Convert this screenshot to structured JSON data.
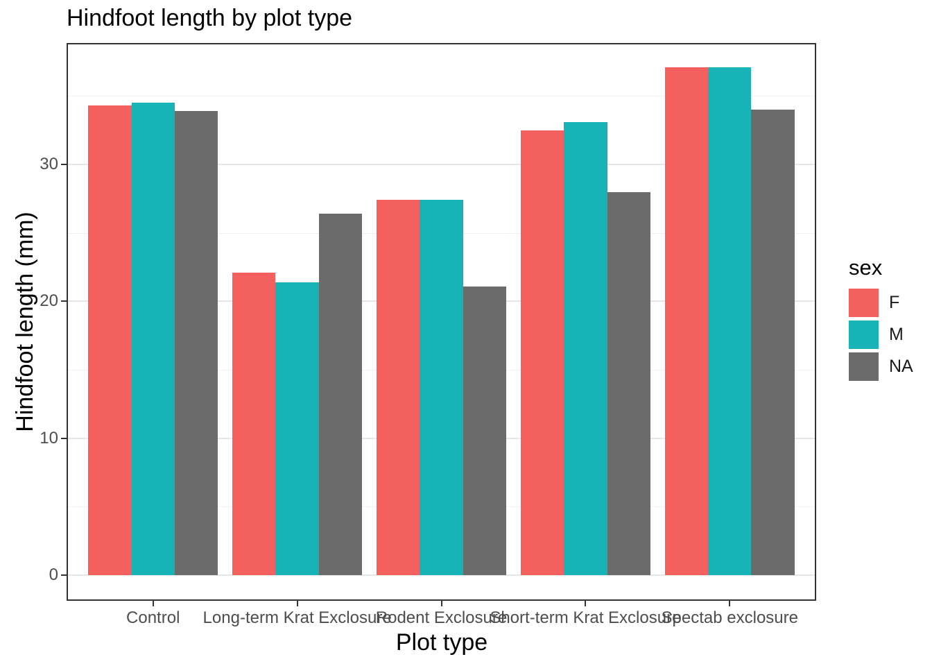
{
  "chart_data": {
    "type": "bar",
    "title": "Hindfoot length by plot type",
    "xlabel": "Plot type",
    "ylabel": "Hindfoot length (mm)",
    "categories": [
      "Control",
      "Long-term Krat Exclosure",
      "Rodent Exclosure",
      "Short-term Krat Exclosure",
      "Spectab exclosure"
    ],
    "series": [
      {
        "name": "F",
        "color": "#F3605D",
        "values": [
          34.3,
          22.1,
          27.4,
          32.5,
          37.1
        ]
      },
      {
        "name": "M",
        "color": "#17B3B6",
        "values": [
          34.5,
          21.4,
          27.4,
          33.1,
          37.1
        ]
      },
      {
        "name": "NA",
        "color": "#6B6B6B",
        "values": [
          33.9,
          26.4,
          21.1,
          28.0,
          34.0
        ]
      }
    ],
    "ylim": [
      0,
      38.9
    ],
    "yticks": [
      0,
      10,
      20,
      30
    ],
    "yticks_minor": [
      5,
      15,
      25,
      35
    ],
    "grid": true,
    "legend_title": "sex",
    "legend_position": "right",
    "legend_entries": [
      "F",
      "M",
      "NA"
    ]
  }
}
